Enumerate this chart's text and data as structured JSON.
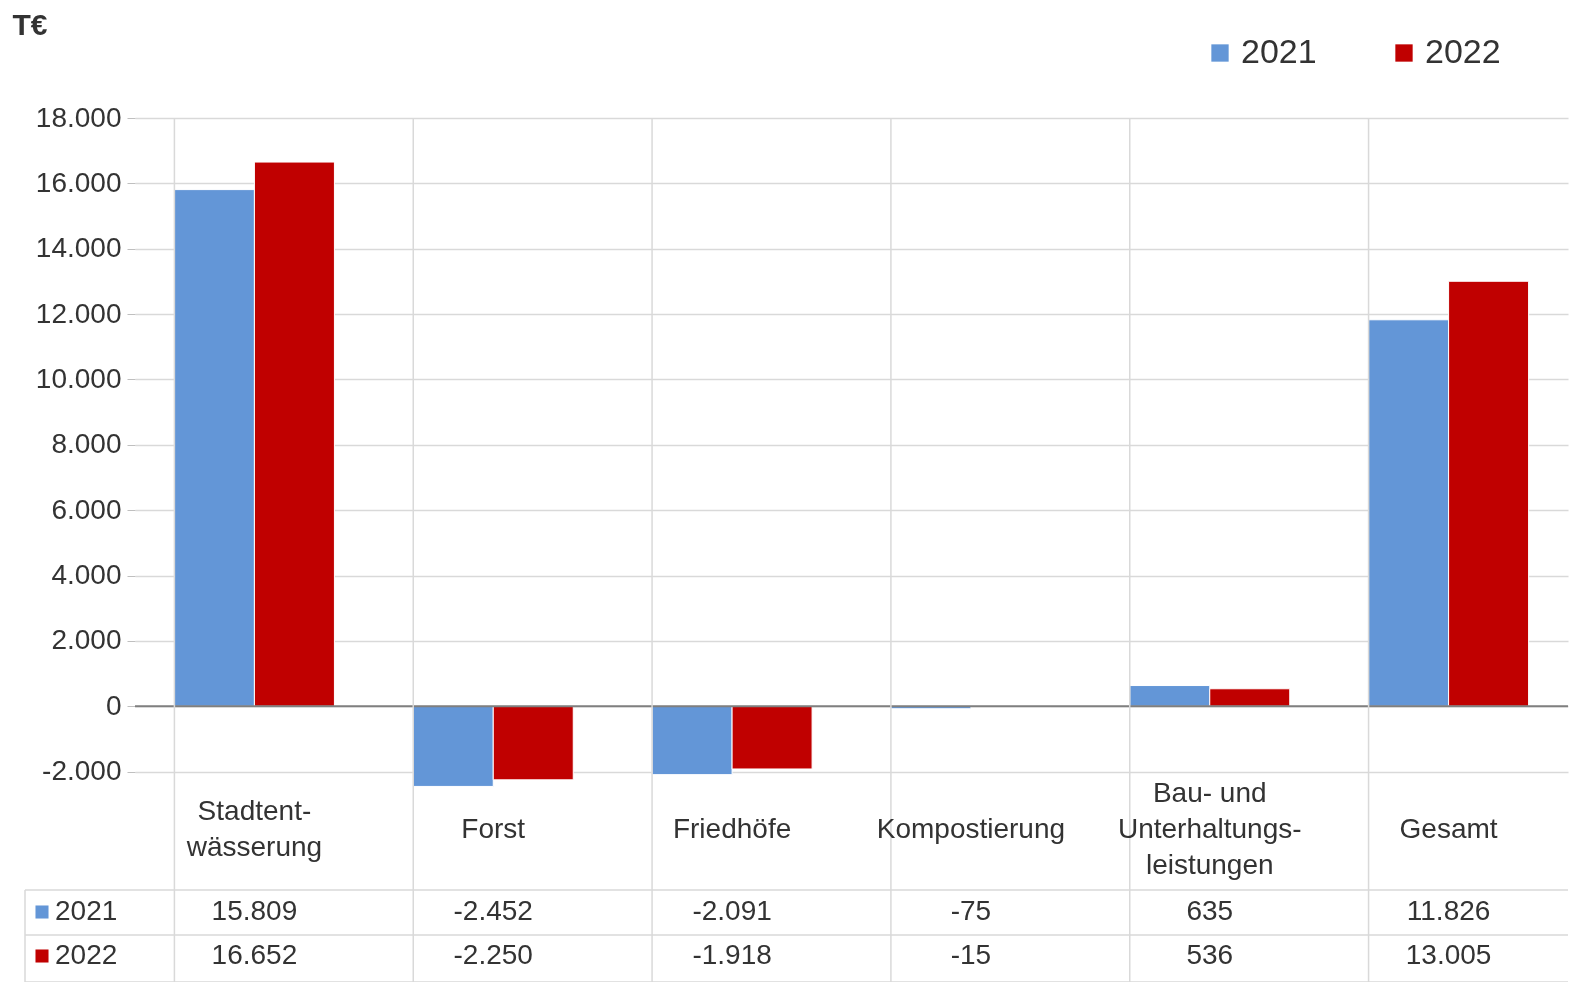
{
  "chart_data": {
    "type": "bar",
    "ylabel": "T€",
    "categories": [
      "Stadtent-\nwässerung",
      "Forst",
      "Friedhöfe",
      "Kompostierung",
      "Bau- und\nUnterhaltungs-\nleistungen",
      "Gesamt"
    ],
    "series": [
      {
        "name": "2021",
        "color": "#6396d7",
        "values": [
          15809,
          -2452,
          -2091,
          -75,
          635,
          11826
        ],
        "value_labels": [
          "15.809",
          "-2.452",
          "-2.091",
          "-75",
          "635",
          "11.826"
        ]
      },
      {
        "name": "2022",
        "color": "#c00000",
        "values": [
          16652,
          -2250,
          -1918,
          -15,
          536,
          13005
        ],
        "value_labels": [
          "16.652",
          "-2.250",
          "-1.918",
          "-15",
          "536",
          "13.005"
        ]
      }
    ],
    "ylim": [
      -2500,
      18000
    ],
    "yticks": [
      {
        "value": -2000,
        "label": "-2.000"
      },
      0,
      {
        "value": 2000,
        "label": "2.000"
      },
      {
        "value": 4000,
        "label": "4.000"
      },
      {
        "value": 6000,
        "label": "6.000"
      },
      {
        "value": 8000,
        "label": "8.000"
      },
      {
        "value": 10000,
        "label": "10.000"
      },
      {
        "value": 12000,
        "label": "12.000"
      },
      {
        "value": 14000,
        "label": "14.000"
      },
      {
        "value": 16000,
        "label": "16.000"
      },
      {
        "value": 18000,
        "label": "18.000"
      }
    ],
    "grid": true,
    "legend": "top right"
  }
}
